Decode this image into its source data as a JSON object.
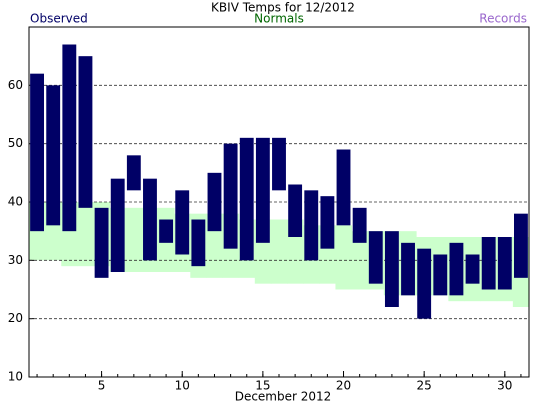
{
  "chart_data": {
    "type": "floating_bar",
    "title": "KBIV Temps for 12/2012",
    "xlabel": "December 2012",
    "x": [
      1,
      2,
      3,
      4,
      5,
      6,
      7,
      8,
      9,
      10,
      11,
      12,
      13,
      14,
      15,
      16,
      17,
      18,
      19,
      20,
      21,
      22,
      23,
      24,
      25,
      26,
      27,
      28,
      29,
      30,
      31
    ],
    "series": [
      {
        "name": "Observed",
        "color": "#000066",
        "high": [
          62,
          60,
          67,
          65,
          39,
          44,
          48,
          44,
          37,
          42,
          37,
          45,
          50,
          51,
          51,
          51,
          43,
          42,
          41,
          49,
          39,
          35,
          35,
          33,
          32,
          31,
          33,
          31,
          34,
          34,
          38
        ],
        "low": [
          35,
          36,
          35,
          39,
          27,
          28,
          42,
          30,
          33,
          31,
          29,
          35,
          32,
          30,
          33,
          42,
          34,
          30,
          32,
          36,
          33,
          26,
          22,
          24,
          20,
          24,
          24,
          26,
          25,
          25,
          27
        ]
      },
      {
        "name": "Normals",
        "color": "#006600",
        "fill": "#ccffcc",
        "high": [
          40,
          40,
          40,
          40,
          40,
          39,
          39,
          39,
          39,
          38,
          38,
          38,
          38,
          37,
          37,
          37,
          37,
          36,
          36,
          36,
          35,
          35,
          35,
          35,
          34,
          34,
          34,
          34,
          34,
          34,
          34
        ],
        "low": [
          30,
          30,
          29,
          29,
          29,
          28,
          28,
          28,
          28,
          28,
          27,
          27,
          27,
          27,
          26,
          26,
          26,
          26,
          26,
          25,
          25,
          25,
          24,
          24,
          24,
          24,
          23,
          23,
          23,
          23,
          22
        ]
      },
      {
        "name": "Records",
        "color": "#9966cc"
      }
    ],
    "xlim": [
      0.5,
      31.5
    ],
    "xticks": [
      5,
      10,
      15,
      20,
      25,
      30
    ],
    "ylim": [
      10,
      70
    ],
    "yticks": [
      10,
      20,
      30,
      40,
      50,
      60
    ],
    "grid": true
  }
}
